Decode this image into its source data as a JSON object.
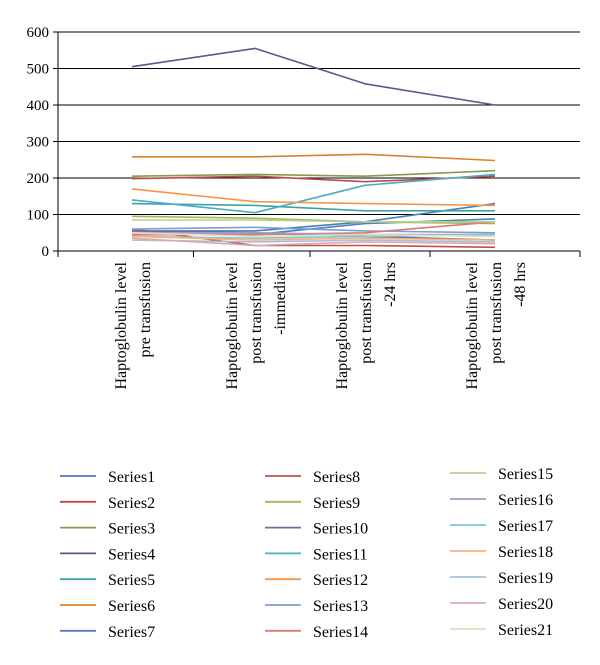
{
  "chart_data": {
    "type": "line",
    "categories": [
      [
        "Haptoglobulin level",
        "pre transfusion"
      ],
      [
        "Haptoglobulin level",
        "post transfusion",
        "-immediate"
      ],
      [
        "Haptoglobulin level",
        "post transfusion",
        "-24 hrs"
      ],
      [
        "Haptoglobulin level",
        "post transfusion",
        "-48 hrs"
      ]
    ],
    "ylim": [
      0,
      600
    ],
    "yticks": [
      0,
      100,
      200,
      300,
      400,
      500,
      600
    ],
    "grid": "horizontal",
    "legend_position": "bottom",
    "series": [
      {
        "name": "Series1",
        "color": "#4a7ebb",
        "values": [
          55,
          55,
          80,
          130
        ]
      },
      {
        "name": "Series2",
        "color": "#be4b48",
        "values": [
          198,
          205,
          190,
          205
        ]
      },
      {
        "name": "Series3",
        "color": "#7f9f4b",
        "values": [
          205,
          210,
          205,
          220
        ]
      },
      {
        "name": "Series4",
        "color": "#6a4f8e",
        "values": [
          505,
          555,
          458,
          400
        ]
      },
      {
        "name": "Series5",
        "color": "#3da2a6",
        "values": [
          130,
          125,
          110,
          110
        ]
      },
      {
        "name": "Series6",
        "color": "#d9822b",
        "values": [
          258,
          258,
          265,
          248
        ]
      },
      {
        "name": "Series7",
        "color": "#4f81bd",
        "values": [
          45,
          45,
          75,
          88
        ]
      },
      {
        "name": "Series8",
        "color": "#c0504d",
        "values": [
          60,
          15,
          15,
          10
        ]
      },
      {
        "name": "Series9",
        "color": "#9bbb59",
        "values": [
          95,
          90,
          80,
          75
        ]
      },
      {
        "name": "Series10",
        "color": "#8064a2",
        "values": [
          55,
          50,
          40,
          30
        ]
      },
      {
        "name": "Series11",
        "color": "#4bacc6",
        "values": [
          140,
          105,
          180,
          210
        ]
      },
      {
        "name": "Series12",
        "color": "#f79646",
        "values": [
          170,
          135,
          130,
          125
        ]
      },
      {
        "name": "Series13",
        "color": "#7ba0cd",
        "values": [
          60,
          65,
          55,
          50
        ]
      },
      {
        "name": "Series14",
        "color": "#d87a77",
        "values": [
          45,
          45,
          50,
          80
        ]
      },
      {
        "name": "Series15",
        "color": "#b9d08b",
        "values": [
          85,
          85,
          80,
          80
        ]
      },
      {
        "name": "Series16",
        "color": "#a797c1",
        "values": [
          50,
          50,
          45,
          45
        ]
      },
      {
        "name": "Series17",
        "color": "#82c6d8",
        "values": [
          40,
          35,
          40,
          45
        ]
      },
      {
        "name": "Series18",
        "color": "#f9b27c",
        "values": [
          40,
          30,
          35,
          30
        ]
      },
      {
        "name": "Series19",
        "color": "#a8c0dc",
        "values": [
          30,
          25,
          30,
          25
        ]
      },
      {
        "name": "Series20",
        "color": "#dbaaa8",
        "values": [
          35,
          15,
          25,
          20
        ]
      },
      {
        "name": "Series21",
        "color": "#d7e4bd",
        "values": [
          50,
          40,
          45,
          40
        ]
      }
    ]
  }
}
